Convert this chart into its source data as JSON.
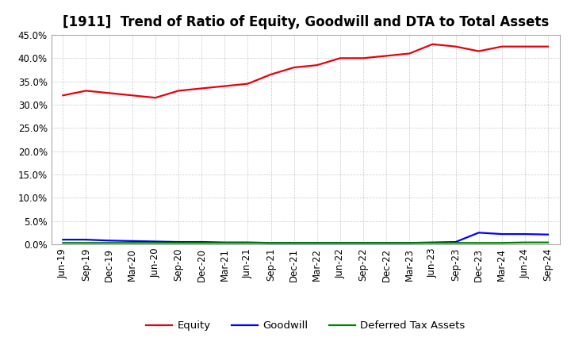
{
  "title": "[1911]  Trend of Ratio of Equity, Goodwill and DTA to Total Assets",
  "x_labels": [
    "Jun-19",
    "Sep-19",
    "Dec-19",
    "Mar-20",
    "Jun-20",
    "Sep-20",
    "Dec-20",
    "Mar-21",
    "Jun-21",
    "Sep-21",
    "Dec-21",
    "Mar-22",
    "Jun-22",
    "Sep-22",
    "Dec-22",
    "Mar-23",
    "Jun-23",
    "Sep-23",
    "Dec-23",
    "Mar-24",
    "Jun-24",
    "Sep-24"
  ],
  "equity": [
    0.32,
    0.33,
    0.325,
    0.32,
    0.315,
    0.33,
    0.335,
    0.34,
    0.345,
    0.365,
    0.38,
    0.385,
    0.4,
    0.4,
    0.405,
    0.41,
    0.43,
    0.425,
    0.415,
    0.425,
    0.425,
    0.425
  ],
  "goodwill": [
    0.01,
    0.01,
    0.008,
    0.007,
    0.006,
    0.005,
    0.005,
    0.004,
    0.004,
    0.003,
    0.003,
    0.003,
    0.003,
    0.003,
    0.003,
    0.003,
    0.004,
    0.005,
    0.025,
    0.022,
    0.022,
    0.021
  ],
  "dta": [
    0.003,
    0.003,
    0.003,
    0.003,
    0.003,
    0.003,
    0.003,
    0.003,
    0.003,
    0.003,
    0.003,
    0.003,
    0.003,
    0.003,
    0.003,
    0.003,
    0.003,
    0.003,
    0.003,
    0.003,
    0.004,
    0.004
  ],
  "equity_color": "#e8000a",
  "goodwill_color": "#0000ff",
  "dta_color": "#008000",
  "background_color": "#ffffff",
  "plot_bg_color": "#ffffff",
  "grid_color": "#b0b0b0",
  "ylim": [
    0.0,
    0.45
  ],
  "yticks": [
    0.0,
    0.05,
    0.1,
    0.15,
    0.2,
    0.25,
    0.3,
    0.35,
    0.4,
    0.45
  ],
  "legend_labels": [
    "Equity",
    "Goodwill",
    "Deferred Tax Assets"
  ],
  "title_fontsize": 12,
  "axis_fontsize": 8.5,
  "legend_fontsize": 9.5,
  "line_width": 1.6
}
